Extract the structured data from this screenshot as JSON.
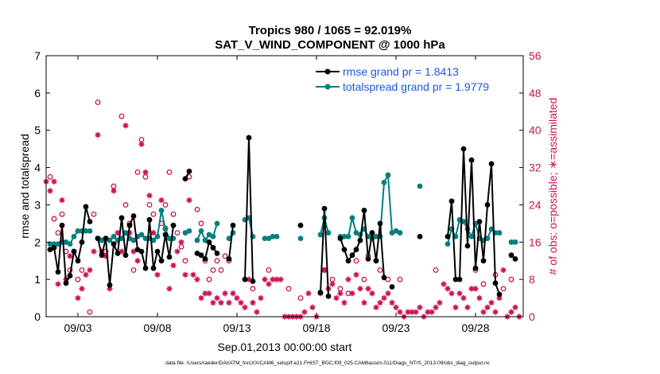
{
  "chart_data": {
    "type": "line",
    "title": "Tropics 980 / 1065 = 92.019%",
    "subtitle": "SAT_V_WIND_COMPONENT @ 1000 hPa",
    "xlabel": "Sep.01,2013 00:00:00 start",
    "ylabel": "rmse and totalspread",
    "y2label": "# of obs: o=possible; ∗=assimilated",
    "footer": "data file: /Users/raeder/DAI/ATM_forcXX/CAM6_setup/f.e21.FHIST_BGC.f09_025.CAM6assim.011/Diags_NTrS_2013-09/obs_diag_output.nc",
    "xlim": [
      1,
      31
    ],
    "ylim": [
      0,
      7
    ],
    "y2lim": [
      0,
      56
    ],
    "xticks": [
      3,
      8,
      13,
      18,
      23,
      28
    ],
    "xtick_labels": [
      "09/03",
      "09/08",
      "09/13",
      "09/18",
      "09/23",
      "09/28"
    ],
    "yticks": [
      0,
      1,
      2,
      3,
      4,
      5,
      6,
      7
    ],
    "ytick_labels": [
      "0",
      "1",
      "2",
      "3",
      "4",
      "5",
      "6",
      "7"
    ],
    "y2ticks": [
      0,
      8,
      16,
      24,
      32,
      40,
      48,
      56
    ],
    "y2tick_labels": [
      "0",
      "8",
      "16",
      "24",
      "32",
      "40",
      "48",
      "56"
    ],
    "legend_position": "top-right",
    "colors": {
      "rmse": "#000000",
      "spread": "#008080",
      "obs": "#cc1155",
      "axis": "#000000"
    },
    "series": [
      {
        "name": "rmse",
        "legend": "rmse grand pr = 1.8413",
        "points": [
          [
            1.25,
            1.8
          ],
          [
            1.5,
            1.85
          ],
          [
            1.75,
            1.2
          ],
          [
            2.0,
            2.45
          ],
          [
            2.25,
            0.9
          ],
          [
            2.5,
            1.1
          ],
          [
            2.75,
            1.75
          ],
          [
            3.0,
            1.5
          ],
          [
            3.25,
            2.0
          ],
          [
            3.5,
            2.95
          ],
          [
            3.75,
            2.55
          ],
          null,
          [
            4.25,
            2.1
          ],
          [
            4.5,
            1.65
          ],
          [
            4.75,
            2.1
          ],
          [
            5.0,
            0.85
          ],
          [
            5.25,
            1.95
          ],
          [
            5.5,
            1.7
          ],
          [
            5.75,
            2.65
          ],
          [
            6.0,
            1.65
          ],
          [
            6.25,
            2.45
          ],
          [
            6.5,
            2.7
          ],
          [
            6.75,
            1.8
          ],
          [
            7.0,
            1.75
          ],
          [
            7.25,
            1.3
          ],
          [
            7.5,
            2.6
          ],
          [
            7.75,
            1.3
          ],
          [
            8.0,
            1.75
          ],
          [
            8.25,
            1.5
          ],
          [
            8.5,
            2.2
          ],
          [
            8.75,
            1.6
          ],
          [
            9.0,
            2.45
          ],
          null,
          [
            9.75,
            3.7
          ],
          [
            10.0,
            3.9
          ],
          null,
          [
            10.5,
            1.7
          ],
          [
            10.75,
            1.65
          ],
          [
            11.0,
            1.55
          ],
          [
            11.25,
            2.0
          ],
          [
            11.5,
            1.85
          ],
          [
            11.75,
            1.7
          ],
          null,
          [
            12.5,
            1.55
          ],
          [
            12.75,
            2.45
          ],
          null,
          [
            13.5,
            1.0
          ],
          [
            13.75,
            4.8
          ],
          [
            14.0,
            0.95
          ],
          null,
          [
            17.0,
            2.45
          ],
          null,
          [
            18.25,
            0.65
          ],
          [
            18.5,
            2.9
          ],
          [
            18.75,
            0.55
          ],
          null,
          [
            19.5,
            2.1
          ],
          [
            19.75,
            1.8
          ],
          [
            20.0,
            1.5
          ],
          [
            20.25,
            1.65
          ],
          [
            20.5,
            1.8
          ],
          [
            20.75,
            2.05
          ],
          [
            21.0,
            2.85
          ],
          [
            21.25,
            1.55
          ],
          [
            21.5,
            2.25
          ],
          [
            21.75,
            1.5
          ],
          [
            22.0,
            2.5
          ],
          [
            22.25,
            1.05
          ],
          null,
          [
            22.75,
            0.8
          ],
          null,
          [
            24.5,
            2.15
          ],
          null,
          [
            26.25,
            2.15
          ],
          [
            26.5,
            3.1
          ],
          [
            26.75,
            1.0
          ],
          [
            27.0,
            1.0
          ],
          [
            27.25,
            4.5
          ],
          [
            27.5,
            1.9
          ],
          [
            27.75,
            4.2
          ],
          [
            28.0,
            1.3
          ],
          [
            28.25,
            2.55
          ],
          [
            28.5,
            1.5
          ],
          [
            28.75,
            3.0
          ],
          [
            29.0,
            4.1
          ],
          [
            29.25,
            0.9
          ],
          [
            29.5,
            0.6
          ],
          null,
          [
            30.25,
            1.65
          ],
          [
            30.5,
            1.55
          ]
        ]
      },
      {
        "name": "totalspread",
        "legend": "totalspread grand pr = 1.9779",
        "points": [
          [
            1.25,
            1.95
          ],
          [
            1.5,
            1.95
          ],
          [
            1.75,
            1.95
          ],
          [
            2.0,
            2.0
          ],
          [
            2.25,
            2.0
          ],
          [
            2.5,
            1.95
          ],
          [
            2.75,
            2.15
          ],
          [
            3.0,
            2.3
          ],
          [
            3.25,
            2.3
          ],
          [
            3.5,
            2.3
          ],
          [
            3.75,
            2.3
          ],
          null,
          [
            4.25,
            2.1
          ],
          [
            4.5,
            2.05
          ],
          [
            4.75,
            2.1
          ],
          [
            5.0,
            2.05
          ],
          [
            5.25,
            2.15
          ],
          [
            5.5,
            2.05
          ],
          [
            5.75,
            2.1
          ],
          [
            6.0,
            2.25
          ],
          [
            6.25,
            2.1
          ],
          [
            6.5,
            2.05
          ],
          [
            6.75,
            2.15
          ],
          [
            7.0,
            2.2
          ],
          [
            7.25,
            2.1
          ],
          [
            7.5,
            2.1
          ],
          [
            7.75,
            2.05
          ],
          [
            8.0,
            2.15
          ],
          [
            8.25,
            2.85
          ],
          [
            8.5,
            2.35
          ],
          [
            8.75,
            2.1
          ],
          [
            9.0,
            2.1
          ],
          null,
          [
            9.75,
            2.25
          ],
          [
            10.0,
            2.3
          ],
          null,
          [
            10.5,
            2.05
          ],
          [
            10.75,
            2.3
          ],
          [
            11.0,
            2.05
          ],
          [
            11.25,
            2.2
          ],
          [
            11.5,
            2.15
          ],
          [
            11.75,
            2.5
          ],
          null,
          [
            12.5,
            2.1
          ],
          [
            12.75,
            2.25
          ],
          null,
          [
            13.5,
            2.6
          ],
          [
            13.75,
            2.65
          ],
          [
            14.0,
            2.15
          ],
          null,
          [
            14.75,
            2.1
          ],
          [
            15.0,
            2.1
          ],
          [
            15.25,
            2.15
          ],
          [
            15.5,
            2.15
          ],
          null,
          [
            17.0,
            2.1
          ],
          null,
          [
            18.25,
            2.2
          ],
          [
            18.5,
            2.65
          ],
          [
            18.75,
            2.25
          ],
          null,
          [
            19.5,
            2.15
          ],
          [
            19.75,
            2.15
          ],
          [
            20.0,
            2.15
          ],
          [
            20.25,
            2.65
          ],
          [
            20.5,
            2.25
          ],
          [
            20.75,
            2.2
          ],
          [
            21.0,
            2.35
          ],
          [
            21.25,
            2.15
          ],
          [
            21.5,
            2.1
          ],
          [
            21.75,
            2.15
          ],
          [
            22.0,
            2.15
          ],
          [
            22.25,
            3.6
          ],
          [
            22.5,
            3.8
          ],
          [
            22.75,
            2.25
          ],
          [
            23.0,
            2.3
          ],
          [
            23.25,
            2.25
          ],
          null,
          [
            24.5,
            3.5
          ],
          null,
          [
            26.25,
            1.95
          ],
          [
            26.5,
            2.35
          ],
          [
            26.75,
            2.15
          ],
          [
            27.0,
            2.6
          ],
          [
            27.25,
            2.55
          ],
          [
            27.5,
            2.35
          ],
          [
            27.75,
            2.15
          ],
          [
            28.0,
            2.5
          ],
          [
            28.25,
            2.1
          ],
          [
            28.5,
            2.05
          ],
          [
            28.75,
            2.1
          ],
          [
            29.0,
            2.35
          ],
          [
            29.25,
            2.25
          ],
          [
            29.5,
            2.25
          ],
          null,
          [
            30.25,
            2.0
          ],
          [
            30.5,
            2.0
          ]
        ]
      }
    ],
    "obs_possible": [
      [
        1.25,
        30
      ],
      [
        1.5,
        21
      ],
      [
        1.75,
        18
      ],
      [
        2.0,
        22
      ],
      [
        2.25,
        14
      ],
      [
        2.5,
        10
      ],
      [
        3.0,
        8
      ],
      [
        3.25,
        10
      ],
      [
        3.75,
        1
      ],
      [
        4.0,
        22
      ],
      [
        4.25,
        46
      ],
      [
        4.75,
        14
      ],
      [
        5.25,
        28
      ],
      [
        5.75,
        43
      ],
      [
        6.0,
        24
      ],
      [
        6.25,
        20
      ],
      [
        6.5,
        10
      ],
      [
        6.75,
        31
      ],
      [
        7.0,
        38
      ],
      [
        7.25,
        30
      ],
      [
        7.5,
        24
      ],
      [
        7.75,
        22
      ],
      [
        8.25,
        20
      ],
      [
        8.5,
        24
      ],
      [
        8.75,
        31
      ],
      [
        9.0,
        22
      ],
      [
        9.25,
        18
      ],
      [
        9.5,
        15
      ],
      [
        9.75,
        12
      ],
      [
        10.0,
        30
      ],
      [
        10.5,
        23
      ],
      [
        10.75,
        20
      ],
      [
        11.0,
        12
      ],
      [
        11.25,
        8
      ],
      [
        11.5,
        10
      ],
      [
        11.75,
        12
      ],
      [
        12.0,
        10
      ],
      [
        12.25,
        13
      ],
      [
        12.5,
        12
      ],
      [
        14.0,
        6
      ],
      [
        15.0,
        10
      ],
      [
        16.25,
        6
      ],
      [
        17.0,
        4
      ],
      [
        18.5,
        10
      ],
      [
        19.0,
        8
      ],
      [
        19.5,
        6
      ],
      [
        20.0,
        5
      ],
      [
        20.5,
        12
      ],
      [
        21.0,
        8
      ],
      [
        21.25,
        13
      ],
      [
        21.75,
        12
      ],
      [
        22.0,
        10
      ],
      [
        22.5,
        8
      ],
      [
        23.25,
        8
      ],
      [
        25.5,
        10
      ],
      [
        28.0,
        10
      ],
      [
        28.5,
        7
      ],
      [
        29.25,
        9
      ],
      [
        29.75,
        6
      ],
      [
        30.25,
        8
      ]
    ],
    "obs_assimilated": [
      [
        1.0,
        29
      ],
      [
        1.25,
        27
      ],
      [
        1.5,
        29
      ],
      [
        1.75,
        7
      ],
      [
        2.0,
        25
      ],
      [
        2.25,
        8
      ],
      [
        2.5,
        13
      ],
      [
        2.75,
        14
      ],
      [
        3.0,
        4
      ],
      [
        3.25,
        6
      ],
      [
        3.5,
        9
      ],
      [
        3.75,
        10
      ],
      [
        4.0,
        14
      ],
      [
        4.25,
        39
      ],
      [
        4.5,
        14
      ],
      [
        4.75,
        13
      ],
      [
        5.0,
        6
      ],
      [
        5.25,
        27
      ],
      [
        5.5,
        18
      ],
      [
        5.75,
        14
      ],
      [
        6.0,
        41
      ],
      [
        6.25,
        18
      ],
      [
        6.5,
        14
      ],
      [
        6.75,
        12
      ],
      [
        7.0,
        37
      ],
      [
        7.25,
        31
      ],
      [
        7.5,
        26
      ],
      [
        7.75,
        18
      ],
      [
        8.0,
        9
      ],
      [
        8.25,
        25
      ],
      [
        8.5,
        19
      ],
      [
        8.75,
        6
      ],
      [
        9.0,
        11
      ],
      [
        9.25,
        14
      ],
      [
        9.5,
        16
      ],
      [
        9.75,
        9
      ],
      [
        10.0,
        25
      ],
      [
        10.25,
        9
      ],
      [
        10.5,
        8
      ],
      [
        10.75,
        4
      ],
      [
        11.0,
        5
      ],
      [
        11.25,
        5
      ],
      [
        11.5,
        3
      ],
      [
        11.75,
        4
      ],
      [
        12.0,
        3
      ],
      [
        12.25,
        5
      ],
      [
        12.5,
        3
      ],
      [
        12.75,
        5
      ],
      [
        13.0,
        4
      ],
      [
        13.25,
        3
      ],
      [
        13.5,
        2
      ],
      [
        13.75,
        8
      ],
      [
        14.0,
        3
      ],
      [
        14.25,
        1
      ],
      [
        14.5,
        4
      ],
      [
        14.75,
        8
      ],
      [
        15.0,
        7
      ],
      [
        15.25,
        8
      ],
      [
        15.5,
        8
      ],
      [
        15.75,
        8
      ],
      [
        16.0,
        0
      ],
      [
        16.25,
        0
      ],
      [
        16.5,
        0
      ],
      [
        16.75,
        0
      ],
      [
        17.0,
        0
      ],
      [
        17.25,
        1
      ],
      [
        17.5,
        5
      ],
      [
        17.75,
        2
      ],
      [
        18.0,
        0
      ],
      [
        18.25,
        5
      ],
      [
        18.5,
        10
      ],
      [
        18.75,
        6
      ],
      [
        19.0,
        7
      ],
      [
        19.25,
        4
      ],
      [
        19.5,
        5
      ],
      [
        19.75,
        3
      ],
      [
        20.0,
        8
      ],
      [
        20.25,
        5
      ],
      [
        20.5,
        9
      ],
      [
        20.75,
        6
      ],
      [
        21.0,
        3
      ],
      [
        21.25,
        6
      ],
      [
        21.5,
        5
      ],
      [
        21.75,
        2
      ],
      [
        22.0,
        3
      ],
      [
        22.25,
        4
      ],
      [
        22.5,
        5
      ],
      [
        22.75,
        3
      ],
      [
        23.0,
        2
      ],
      [
        23.25,
        1
      ],
      [
        23.5,
        0
      ],
      [
        23.75,
        1
      ],
      [
        24.0,
        1
      ],
      [
        24.25,
        1
      ],
      [
        24.5,
        2
      ],
      [
        24.75,
        0
      ],
      [
        25.0,
        1
      ],
      [
        25.25,
        1
      ],
      [
        25.5,
        2
      ],
      [
        25.75,
        3
      ],
      [
        26.0,
        7
      ],
      [
        26.25,
        6
      ],
      [
        26.5,
        5
      ],
      [
        26.75,
        2
      ],
      [
        27.0,
        5
      ],
      [
        27.25,
        4
      ],
      [
        27.5,
        2
      ],
      [
        27.75,
        6
      ],
      [
        28.0,
        6
      ],
      [
        28.25,
        4
      ],
      [
        28.5,
        1
      ],
      [
        28.75,
        2
      ],
      [
        29.0,
        3
      ],
      [
        29.25,
        1
      ],
      [
        29.5,
        4
      ],
      [
        29.75,
        10
      ],
      [
        30.0,
        0
      ],
      [
        30.25,
        1
      ],
      [
        30.5,
        2
      ],
      [
        30.75,
        0
      ]
    ]
  }
}
